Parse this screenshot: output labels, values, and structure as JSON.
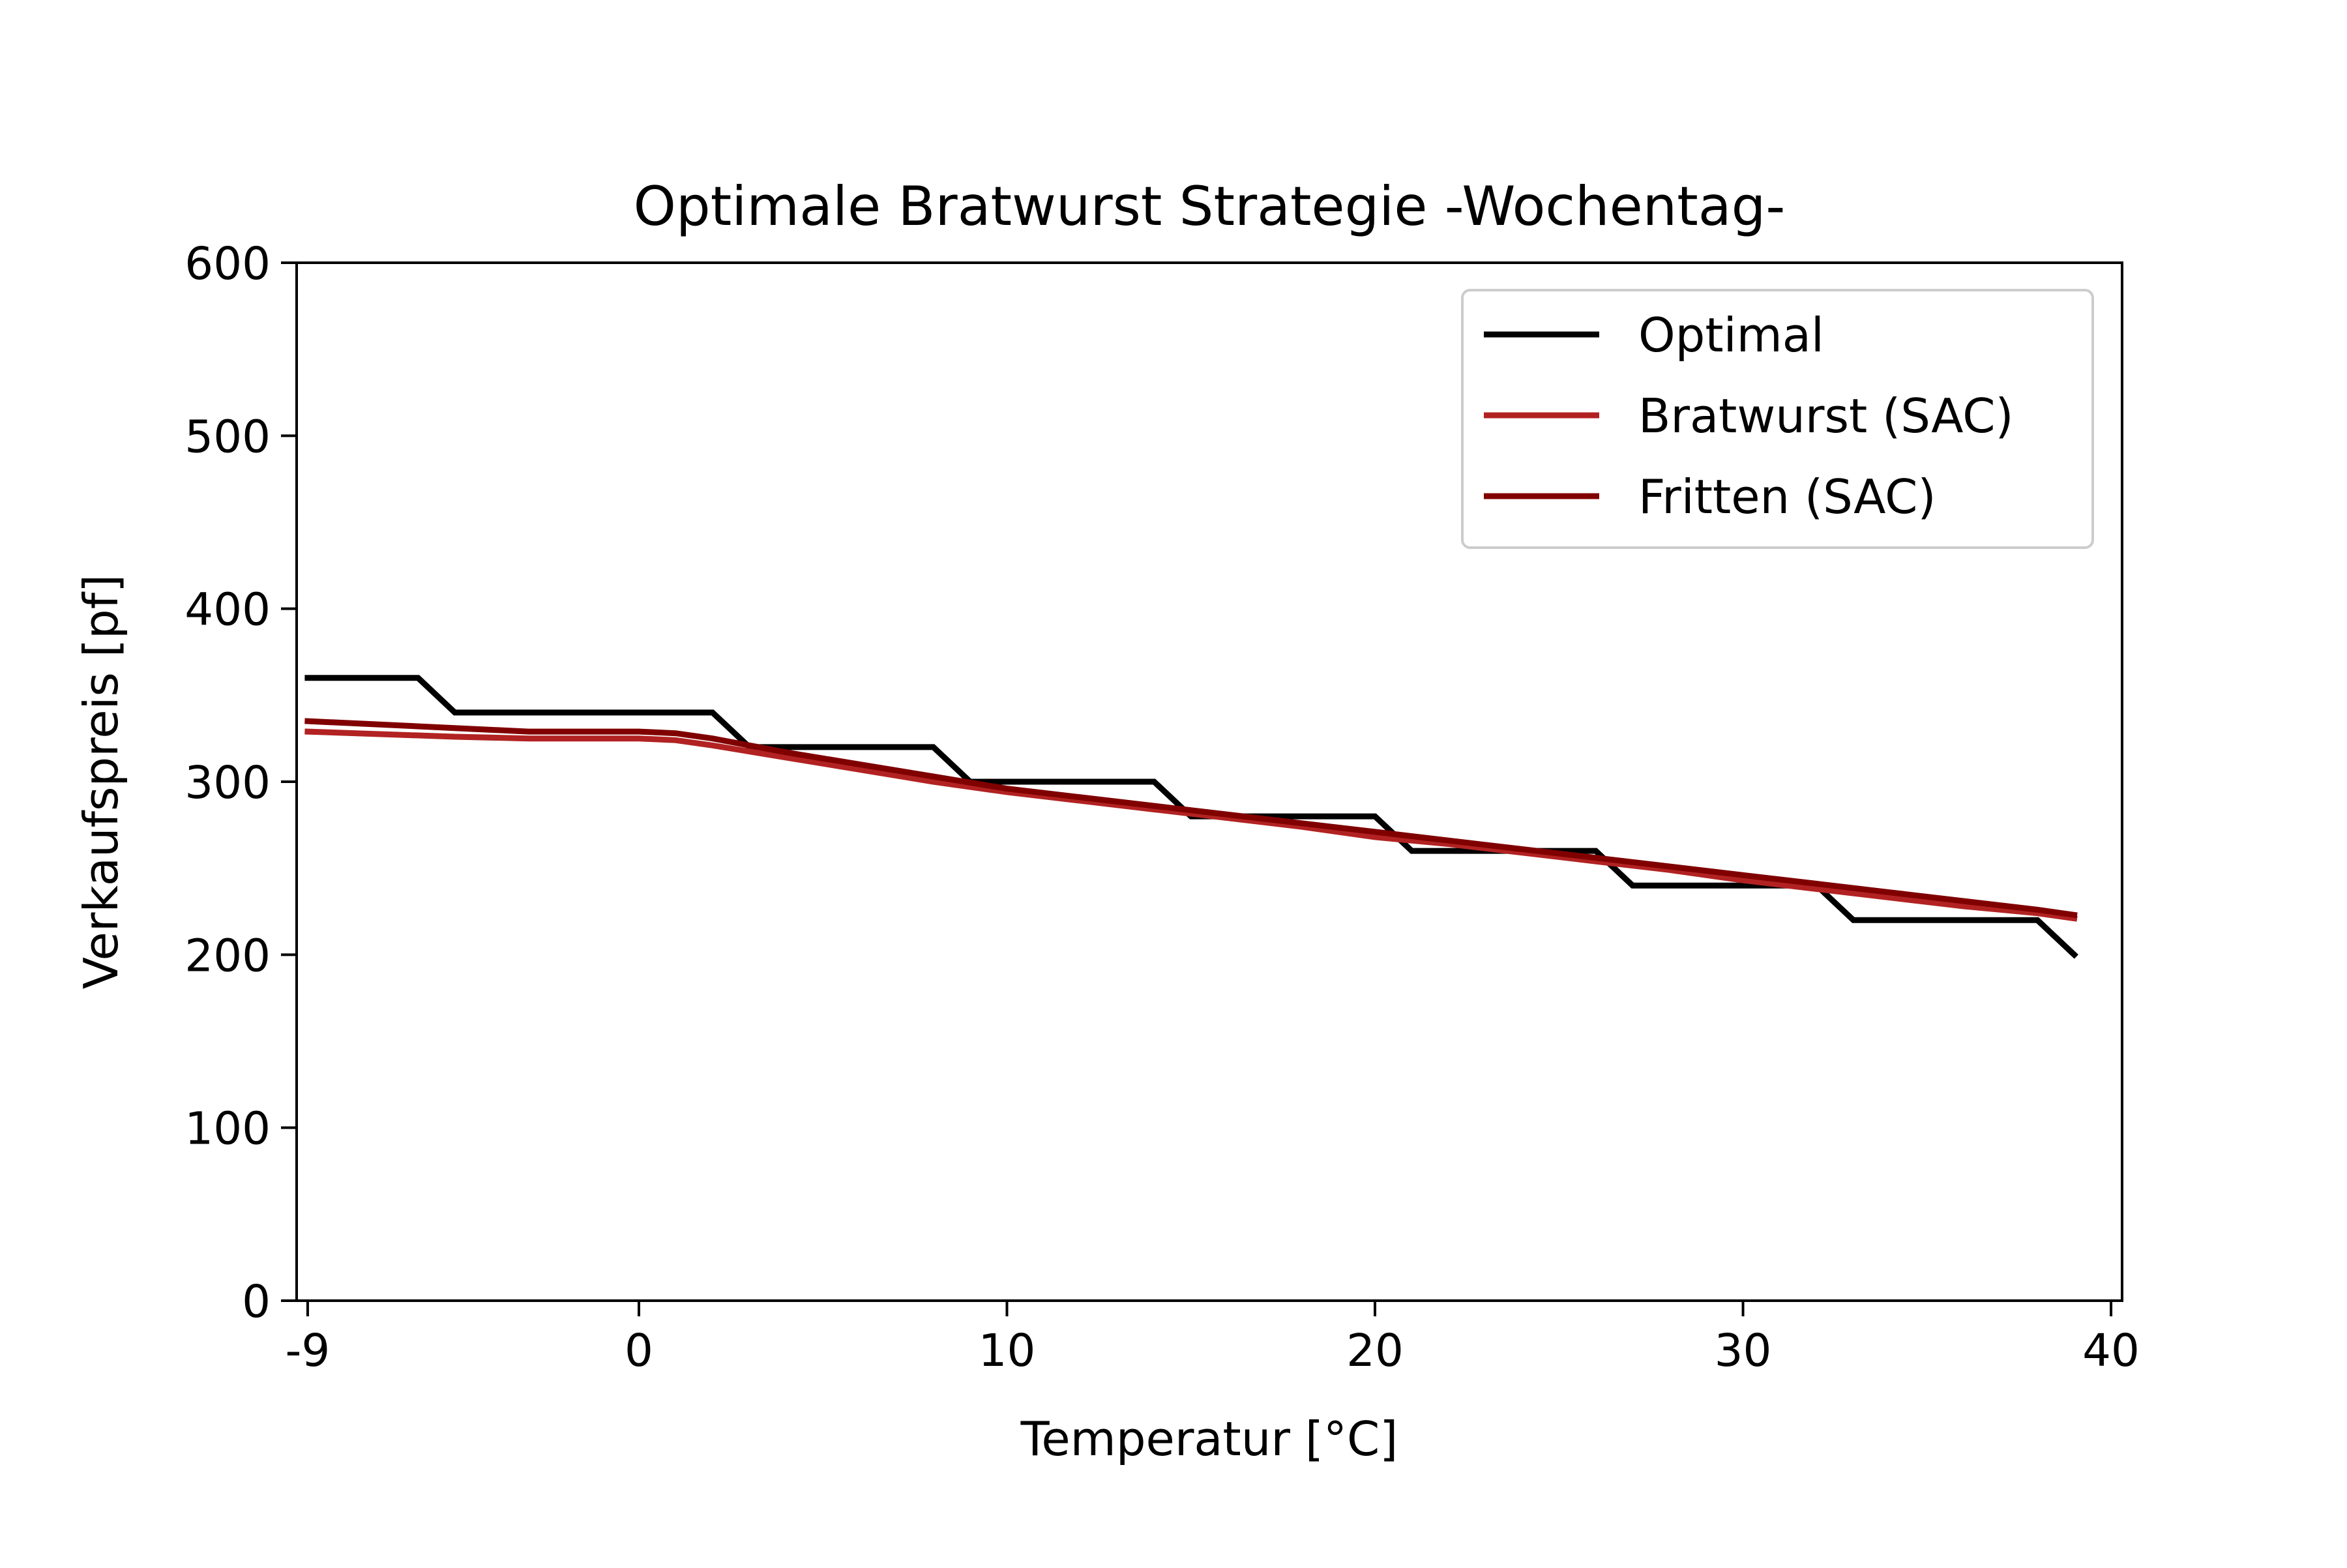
{
  "chart_data": {
    "type": "line",
    "title": "Optimale Bratwurst Strategie -Wochentag-",
    "xlabel": "Temperatur [°C]",
    "ylabel": "Verkaufspreis [pf]",
    "xlim": [
      -9.3,
      40.3
    ],
    "ylim": [
      0,
      600
    ],
    "x_ticks": [
      -9,
      0,
      10,
      20,
      30,
      40
    ],
    "y_ticks": [
      0,
      100,
      200,
      300,
      400,
      500,
      600
    ],
    "grid": false,
    "legend_position": "top-right",
    "series": [
      {
        "name": "Optimal",
        "color": "#000000",
        "x": [
          -9,
          -6,
          -5,
          2,
          3,
          8,
          9,
          14,
          15,
          20,
          21,
          26,
          27,
          32,
          33,
          38,
          39
        ],
        "y": [
          360,
          360,
          340,
          340,
          320,
          320,
          300,
          300,
          280,
          280,
          260,
          260,
          240,
          240,
          220,
          220,
          200
        ]
      },
      {
        "name": "Bratwurst (SAC)",
        "color": "#b22222",
        "x": [
          -9,
          -5,
          -3,
          0,
          1,
          2,
          4,
          6,
          8,
          10,
          12,
          14,
          16,
          18,
          20,
          22,
          24,
          26,
          28,
          30,
          32,
          34,
          36,
          38,
          39
        ],
        "y": [
          329,
          326,
          325,
          325,
          324,
          321,
          314,
          307,
          300,
          294,
          289,
          284,
          279,
          274,
          268,
          264,
          259,
          254,
          249,
          243,
          238,
          233,
          228,
          224,
          221
        ]
      },
      {
        "name": "Fritten (SAC)",
        "color": "#800000",
        "x": [
          -9,
          -5,
          -3,
          0,
          1,
          2,
          4,
          6,
          8,
          10,
          12,
          14,
          16,
          18,
          20,
          22,
          24,
          26,
          28,
          30,
          32,
          34,
          36,
          38,
          39
        ],
        "y": [
          335,
          331,
          329,
          329,
          328,
          325,
          317,
          310,
          303,
          296,
          291,
          286,
          281,
          276,
          271,
          266,
          261,
          256,
          251,
          246,
          241,
          236,
          231,
          226,
          223
        ]
      }
    ]
  }
}
